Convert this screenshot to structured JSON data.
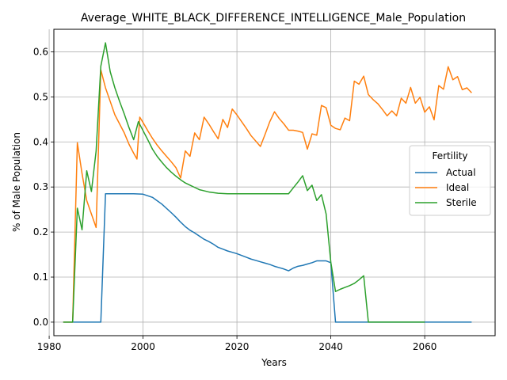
{
  "chart_data": {
    "type": "line",
    "title": "Average_WHITE_BLACK_DIFFERENCE_INTELLIGENCE_Male_Population",
    "xlabel": "Years",
    "ylabel": "% of Male Population",
    "xlim": [
      1981,
      2075
    ],
    "ylim": [
      -0.03,
      0.65
    ],
    "xticks": [
      1980,
      2000,
      2020,
      2040,
      2060
    ],
    "yticks": [
      0.0,
      0.1,
      0.2,
      0.3,
      0.4,
      0.5,
      0.6
    ],
    "ytick_labels": [
      "0.0",
      "0.1",
      "0.2",
      "0.3",
      "0.4",
      "0.5",
      "0.6"
    ],
    "grid": true,
    "legend": {
      "title": "Fertility",
      "placement": "center-right"
    },
    "series": [
      {
        "name": "Actual",
        "color": "#1f77b4",
        "points": [
          [
            1983,
            0.0
          ],
          [
            1985,
            0.0
          ],
          [
            1986,
            0.0
          ],
          [
            1987,
            0.0
          ],
          [
            1988,
            0.0
          ],
          [
            1989,
            0.0
          ],
          [
            1990,
            0.0
          ],
          [
            1991,
            0.0
          ],
          [
            1992,
            0.285
          ],
          [
            1994,
            0.285
          ],
          [
            1996,
            0.285
          ],
          [
            1998,
            0.285
          ],
          [
            2000,
            0.284
          ],
          [
            2002,
            0.277
          ],
          [
            2004,
            0.262
          ],
          [
            2006,
            0.243
          ],
          [
            2007,
            0.233
          ],
          [
            2008,
            0.222
          ],
          [
            2009,
            0.212
          ],
          [
            2010,
            0.204
          ],
          [
            2011,
            0.198
          ],
          [
            2012,
            0.191
          ],
          [
            2013,
            0.184
          ],
          [
            2014,
            0.179
          ],
          [
            2015,
            0.173
          ],
          [
            2016,
            0.166
          ],
          [
            2017,
            0.162
          ],
          [
            2018,
            0.158
          ],
          [
            2019,
            0.155
          ],
          [
            2020,
            0.152
          ],
          [
            2021,
            0.148
          ],
          [
            2022,
            0.144
          ],
          [
            2023,
            0.14
          ],
          [
            2024,
            0.137
          ],
          [
            2025,
            0.134
          ],
          [
            2026,
            0.131
          ],
          [
            2027,
            0.128
          ],
          [
            2028,
            0.124
          ],
          [
            2029,
            0.121
          ],
          [
            2030,
            0.118
          ],
          [
            2031,
            0.114
          ],
          [
            2032,
            0.12
          ],
          [
            2033,
            0.124
          ],
          [
            2034,
            0.126
          ],
          [
            2035,
            0.129
          ],
          [
            2036,
            0.132
          ],
          [
            2037,
            0.136
          ],
          [
            2038,
            0.136
          ],
          [
            2039,
            0.136
          ],
          [
            2040,
            0.132
          ],
          [
            2041,
            0.0
          ],
          [
            2045,
            0.0
          ],
          [
            2050,
            0.0
          ],
          [
            2055,
            0.0
          ],
          [
            2060,
            0.0
          ],
          [
            2065,
            0.0
          ],
          [
            2070,
            0.0
          ]
        ]
      },
      {
        "name": "Ideal",
        "color": "#ff7f0e",
        "points": [
          [
            1983,
            0.0
          ],
          [
            1985,
            0.0
          ],
          [
            1986,
            0.398
          ],
          [
            1987,
            0.33
          ],
          [
            1988,
            0.27
          ],
          [
            1989,
            0.24
          ],
          [
            1990,
            0.21
          ],
          [
            1991,
            0.56
          ],
          [
            1992,
            0.52
          ],
          [
            1993,
            0.49
          ],
          [
            1994,
            0.46
          ],
          [
            1995,
            0.44
          ],
          [
            1996,
            0.42
          ],
          [
            1997,
            0.395
          ],
          [
            1998,
            0.375
          ],
          [
            1998.7,
            0.362
          ],
          [
            1999.3,
            0.455
          ],
          [
            2000,
            0.443
          ],
          [
            2001,
            0.425
          ],
          [
            2002,
            0.408
          ],
          [
            2003,
            0.393
          ],
          [
            2004,
            0.38
          ],
          [
            2005,
            0.368
          ],
          [
            2006,
            0.356
          ],
          [
            2007,
            0.343
          ],
          [
            2008,
            0.32
          ],
          [
            2009,
            0.38
          ],
          [
            2010,
            0.368
          ],
          [
            2011,
            0.42
          ],
          [
            2012,
            0.405
          ],
          [
            2013,
            0.455
          ],
          [
            2014,
            0.44
          ],
          [
            2015,
            0.423
          ],
          [
            2016,
            0.407
          ],
          [
            2017,
            0.45
          ],
          [
            2018,
            0.432
          ],
          [
            2019,
            0.473
          ],
          [
            2020,
            0.46
          ],
          [
            2021,
            0.445
          ],
          [
            2022,
            0.43
          ],
          [
            2023,
            0.414
          ],
          [
            2024,
            0.402
          ],
          [
            2025,
            0.39
          ],
          [
            2026,
            0.417
          ],
          [
            2027,
            0.445
          ],
          [
            2028,
            0.467
          ],
          [
            2029,
            0.452
          ],
          [
            2030,
            0.44
          ],
          [
            2031,
            0.426
          ],
          [
            2032,
            0.426
          ],
          [
            2033,
            0.424
          ],
          [
            2034,
            0.421
          ],
          [
            2035,
            0.384
          ],
          [
            2036,
            0.418
          ],
          [
            2037,
            0.415
          ],
          [
            2038,
            0.481
          ],
          [
            2039,
            0.476
          ],
          [
            2040,
            0.437
          ],
          [
            2041,
            0.43
          ],
          [
            2042,
            0.427
          ],
          [
            2043,
            0.453
          ],
          [
            2044,
            0.447
          ],
          [
            2045,
            0.535
          ],
          [
            2046,
            0.528
          ],
          [
            2047,
            0.546
          ],
          [
            2048,
            0.505
          ],
          [
            2049,
            0.494
          ],
          [
            2050,
            0.485
          ],
          [
            2051,
            0.472
          ],
          [
            2052,
            0.458
          ],
          [
            2053,
            0.469
          ],
          [
            2054,
            0.458
          ],
          [
            2055,
            0.497
          ],
          [
            2056,
            0.486
          ],
          [
            2057,
            0.521
          ],
          [
            2058,
            0.486
          ],
          [
            2059,
            0.499
          ],
          [
            2060,
            0.466
          ],
          [
            2061,
            0.478
          ],
          [
            2062,
            0.449
          ],
          [
            2063,
            0.525
          ],
          [
            2064,
            0.517
          ],
          [
            2065,
            0.567
          ],
          [
            2066,
            0.538
          ],
          [
            2067,
            0.545
          ],
          [
            2068,
            0.516
          ],
          [
            2069,
            0.52
          ],
          [
            2070,
            0.509
          ]
        ]
      },
      {
        "name": "Sterile",
        "color": "#2ca02c",
        "points": [
          [
            1983,
            0.0
          ],
          [
            1985,
            0.0
          ],
          [
            1986,
            0.253
          ],
          [
            1987,
            0.205
          ],
          [
            1988,
            0.336
          ],
          [
            1989,
            0.29
          ],
          [
            1990,
            0.38
          ],
          [
            1991,
            0.568
          ],
          [
            1992,
            0.62
          ],
          [
            1993,
            0.556
          ],
          [
            1994,
            0.52
          ],
          [
            1995,
            0.49
          ],
          [
            1996,
            0.462
          ],
          [
            1997,
            0.432
          ],
          [
            1998,
            0.405
          ],
          [
            1999,
            0.445
          ],
          [
            2000,
            0.425
          ],
          [
            2001,
            0.405
          ],
          [
            2002,
            0.384
          ],
          [
            2003,
            0.368
          ],
          [
            2004,
            0.355
          ],
          [
            2005,
            0.343
          ],
          [
            2006,
            0.333
          ],
          [
            2007,
            0.324
          ],
          [
            2008,
            0.316
          ],
          [
            2009,
            0.309
          ],
          [
            2010,
            0.304
          ],
          [
            2011,
            0.299
          ],
          [
            2012,
            0.294
          ],
          [
            2014,
            0.289
          ],
          [
            2016,
            0.286
          ],
          [
            2018,
            0.285
          ],
          [
            2020,
            0.285
          ],
          [
            2025,
            0.285
          ],
          [
            2030,
            0.285
          ],
          [
            2031,
            0.285
          ],
          [
            2032,
            0.298
          ],
          [
            2033,
            0.311
          ],
          [
            2034,
            0.325
          ],
          [
            2035,
            0.292
          ],
          [
            2036,
            0.304
          ],
          [
            2037,
            0.27
          ],
          [
            2038,
            0.283
          ],
          [
            2039,
            0.24
          ],
          [
            2040,
            0.133
          ],
          [
            2041,
            0.068
          ],
          [
            2042,
            0.073
          ],
          [
            2043,
            0.077
          ],
          [
            2044,
            0.081
          ],
          [
            2045,
            0.086
          ],
          [
            2046,
            0.094
          ],
          [
            2047,
            0.103
          ],
          [
            2048,
            0.0
          ],
          [
            2050,
            0.0
          ],
          [
            2055,
            0.0
          ],
          [
            2060,
            0.0
          ]
        ]
      }
    ]
  }
}
